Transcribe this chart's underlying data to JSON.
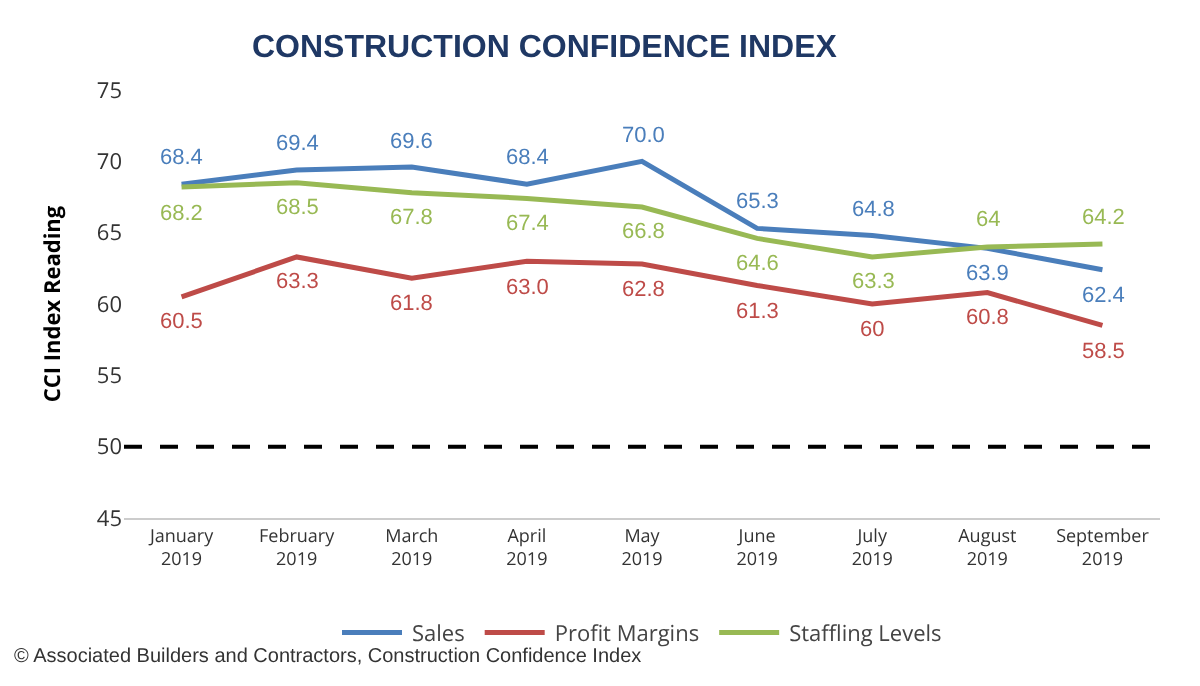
{
  "chart_data": {
    "type": "line",
    "title": "CONSTRUCTION CONFIDENCE INDEX",
    "ylabel": "CCI Index Reading",
    "categories": [
      "January 2019",
      "February 2019",
      "March 2019",
      "April 2019",
      "May 2019",
      "June 2019",
      "July 2019",
      "August 2019",
      "September 2019"
    ],
    "series": [
      {
        "name": "Sales",
        "color": "#4a7ebb",
        "values": [
          68.4,
          69.4,
          69.6,
          68.4,
          70.0,
          65.3,
          64.8,
          63.9,
          62.4
        ],
        "value_labels": [
          "68.4",
          "69.4",
          "69.6",
          "68.4",
          "70.0",
          "65.3",
          "64.8",
          "63.9",
          "62.4"
        ]
      },
      {
        "name": "Profit Margins",
        "color": "#be4b48",
        "values": [
          60.5,
          63.3,
          61.8,
          63.0,
          62.8,
          61.3,
          60,
          60.8,
          58.5
        ],
        "value_labels": [
          "60.5",
          "63.3",
          "61.8",
          "63.0",
          "62.8",
          "61.3",
          "60",
          "60.8",
          "58.5"
        ]
      },
      {
        "name": "Staffling Levels",
        "color": "#98b954",
        "values": [
          68.2,
          68.5,
          67.8,
          67.4,
          66.8,
          64.6,
          63.3,
          64,
          64.2
        ],
        "value_labels": [
          "68.2",
          "68.5",
          "67.8",
          "67.4",
          "66.8",
          "64.6",
          "63.3",
          "64",
          "64.2"
        ]
      }
    ],
    "ylim": [
      45,
      75
    ],
    "yticks": [
      45,
      50,
      55,
      60,
      65,
      70,
      75
    ],
    "grid": false,
    "legend": "bottom",
    "marker": "none",
    "line_style": "solid",
    "ref_lines": [
      {
        "axis": "y",
        "value": 50,
        "color": "#000000",
        "line_style": "dashed"
      }
    ],
    "annotations": [
      "© Associated Builders and Contractors, Construction Confidence Index"
    ]
  }
}
